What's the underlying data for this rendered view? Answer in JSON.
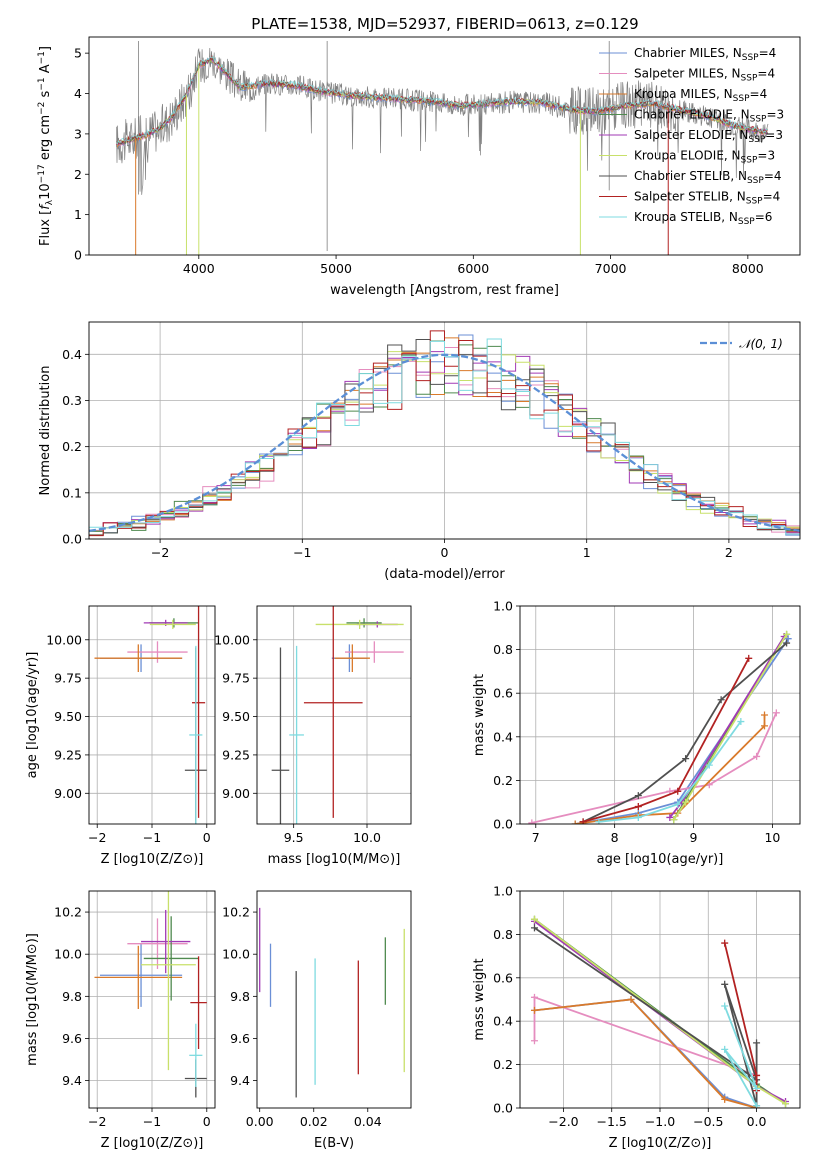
{
  "figure": {
    "title": "PLATE=1538, MJD=52937, FIBERID=0613, z=0.129"
  },
  "colors": {
    "Chabrier MILES": "#6b8fd6",
    "Salpeter MILES": "#e58dbf",
    "Kroupa MILES": "#d97a2b",
    "Chabrier ELODIE": "#4f8a4f",
    "Salpeter ELODIE": "#a23ab5",
    "Kroupa ELODIE": "#c8e06a",
    "Chabrier STELIB": "#505050",
    "Salpeter STELIB": "#b22222",
    "Kroupa STELIB": "#7fdbe0",
    "data": "#808080",
    "normal": "#5b8fd6"
  },
  "chart_data": [
    {
      "id": "spectrum",
      "type": "line",
      "title": "PLATE=1538, MJD=52937, FIBERID=0613, z=0.129",
      "xlabel": "wavelength [Angstrom, rest frame]",
      "ylabel": "Flux [f_λ 10^-17 erg cm^-2 s^-1 A^-1]",
      "xlim": [
        3200,
        8380
      ],
      "ylim": [
        0,
        5.4
      ],
      "xticks": [
        4000,
        5000,
        6000,
        7000,
        8000
      ],
      "yticks": [
        0,
        1,
        2,
        3,
        4,
        5
      ],
      "grid": false,
      "legend_position": "top-right",
      "legend": [
        "Chabrier MILES, N_SSP=4",
        "Salpeter MILES, N_SSP=4",
        "Kroupa MILES, N_SSP=4",
        "Chabrier ELODIE, N_SSP=3",
        "Salpeter ELODIE, N_SSP=3",
        "Kroupa ELODIE, N_SSP=3",
        "Chabrier STELIB, N_SSP=4",
        "Salpeter STELIB, N_SSP=4",
        "Kroupa STELIB, N_SSP=6"
      ],
      "continuum": {
        "x": [
          3400,
          3500,
          3600,
          3700,
          3800,
          3900,
          4000,
          4100,
          4200,
          4300,
          4500,
          4700,
          4900,
          5100,
          5300,
          5500,
          5700,
          5900,
          6100,
          6300,
          6500,
          6700,
          6900,
          7100,
          7300,
          7500,
          7700,
          7900,
          8100
        ],
        "y": [
          2.75,
          2.85,
          2.95,
          3.1,
          3.4,
          3.9,
          4.7,
          4.85,
          4.5,
          4.15,
          4.25,
          4.2,
          4.05,
          3.95,
          3.9,
          3.85,
          3.8,
          3.7,
          3.75,
          3.8,
          3.78,
          3.6,
          3.55,
          3.7,
          3.75,
          3.6,
          3.45,
          3.2,
          3.05
        ]
      }
    },
    {
      "id": "residuals",
      "type": "histogram",
      "xlabel": "(data-model)/error",
      "ylabel": "Normed distribution",
      "xlim": [
        -2.5,
        2.5
      ],
      "ylim": [
        0,
        0.47
      ],
      "xticks": [
        -2,
        -1,
        0,
        1,
        2
      ],
      "yticks": [
        0.0,
        0.1,
        0.2,
        0.3,
        0.4
      ],
      "grid": true,
      "legend_position": "top-right",
      "legend": [
        "𝒩(0, 1)"
      ],
      "bin_width": 0.1,
      "bins_from": -2.5
    },
    {
      "id": "age-vs-Z",
      "type": "errorbar",
      "xlabel": "Z [log10(Z/Z⊙)]",
      "ylabel": "age  [log10(age/yr)]",
      "xlim": [
        -2.15,
        0.15
      ],
      "ylim": [
        8.8,
        10.22
      ],
      "xticks": [
        -2,
        -1,
        0
      ],
      "yticks": [
        9.0,
        9.25,
        9.5,
        9.75,
        10.0
      ],
      "grid": true,
      "points": [
        {
          "model": "Chabrier MILES",
          "x": -1.2,
          "xerr": 0.75,
          "y": 9.88,
          "yerr": 0.09
        },
        {
          "model": "Salpeter MILES",
          "x": -0.9,
          "xerr": 0.55,
          "y": 9.92,
          "yerr": 0.07
        },
        {
          "model": "Kroupa MILES",
          "x": -1.25,
          "xerr": 0.8,
          "y": 9.88,
          "yerr": 0.09
        },
        {
          "model": "Chabrier ELODIE",
          "x": -0.6,
          "xerr": 0.45,
          "y": 10.11,
          "yerr": 0.03
        },
        {
          "model": "Salpeter ELODIE",
          "x": -0.75,
          "xerr": 0.4,
          "y": 10.11,
          "yerr": 0.02
        },
        {
          "model": "Kroupa ELODIE",
          "x": -0.62,
          "xerr": 0.42,
          "y": 10.1,
          "yerr": 0.03
        },
        {
          "model": "Chabrier STELIB",
          "x": -0.2,
          "xerr": 0.2,
          "y": 9.15,
          "yerr": 0.8
        },
        {
          "model": "Salpeter STELIB",
          "x": -0.15,
          "xerr": 0.12,
          "y": 9.59,
          "yerr": 0.75
        },
        {
          "model": "Kroupa STELIB",
          "x": -0.2,
          "xerr": 0.12,
          "y": 9.38,
          "yerr": 0.58
        }
      ]
    },
    {
      "id": "age-vs-mass",
      "type": "errorbar",
      "xlabel": "mass [log10(M/M⊙)]",
      "ylabel": "",
      "xlim": [
        9.25,
        10.3
      ],
      "ylim": [
        8.8,
        10.22
      ],
      "xticks": [
        9.5,
        10.0
      ],
      "yticks": [
        9.0,
        9.25,
        9.5,
        9.75,
        10.0
      ],
      "grid": true,
      "points": [
        {
          "model": "Chabrier MILES",
          "x": 9.88,
          "xerr": 0.12,
          "y": 9.88,
          "yerr": 0.09
        },
        {
          "model": "Salpeter MILES",
          "x": 10.05,
          "xerr": 0.2,
          "y": 9.92,
          "yerr": 0.07
        },
        {
          "model": "Kroupa MILES",
          "x": 9.9,
          "xerr": 0.12,
          "y": 9.88,
          "yerr": 0.09
        },
        {
          "model": "Chabrier ELODIE",
          "x": 9.98,
          "xerr": 0.12,
          "y": 10.11,
          "yerr": 0.03
        },
        {
          "model": "Salpeter ELODIE",
          "x": 10.07,
          "xerr": 0.14,
          "y": 10.1,
          "yerr": 0.02
        },
        {
          "model": "Kroupa ELODIE",
          "x": 9.95,
          "xerr": 0.3,
          "y": 10.1,
          "yerr": 0.03
        },
        {
          "model": "Chabrier STELIB",
          "x": 9.41,
          "xerr": 0.06,
          "y": 9.15,
          "yerr": 0.8
        },
        {
          "model": "Salpeter STELIB",
          "x": 9.77,
          "xerr": 0.2,
          "y": 9.59,
          "yerr": 0.75
        },
        {
          "model": "Kroupa STELIB",
          "x": 9.52,
          "xerr": 0.05,
          "y": 9.38,
          "yerr": 0.58
        }
      ]
    },
    {
      "id": "weight-vs-age",
      "type": "line",
      "xlabel": "age  [log10(age/yr)]",
      "ylabel": "mass weight",
      "xlim": [
        6.8,
        10.35
      ],
      "ylim": [
        0,
        1
      ],
      "xticks": [
        7,
        8,
        9,
        10
      ],
      "yticks": [
        0.0,
        0.2,
        0.4,
        0.6,
        0.8,
        1.0
      ],
      "grid": true,
      "series": [
        {
          "model": "Chabrier MILES",
          "x": [
            7.5,
            8.3,
            8.8,
            10.2
          ],
          "y": [
            0.0,
            0.05,
            0.1,
            0.85
          ]
        },
        {
          "model": "Salpeter MILES",
          "x": [
            6.95,
            8.7,
            9.2,
            9.8,
            10.05
          ],
          "y": [
            0.005,
            0.15,
            0.18,
            0.31,
            0.51
          ]
        },
        {
          "model": "Kroupa MILES",
          "x": [
            7.5,
            8.3,
            8.8,
            9.9,
            9.9
          ],
          "y": [
            0.0,
            0.04,
            0.05,
            0.45,
            0.5
          ]
        },
        {
          "model": "Chabrier ELODIE",
          "x": [
            8.75,
            8.9,
            10.18
          ],
          "y": [
            0.02,
            0.11,
            0.87
          ]
        },
        {
          "model": "Salpeter ELODIE",
          "x": [
            8.7,
            8.85,
            10.15
          ],
          "y": [
            0.03,
            0.1,
            0.86
          ]
        },
        {
          "model": "Kroupa ELODIE",
          "x": [
            8.75,
            8.9,
            10.18
          ],
          "y": [
            0.02,
            0.1,
            0.87
          ]
        },
        {
          "model": "Chabrier STELIB",
          "x": [
            7.6,
            8.3,
            8.9,
            9.35,
            10.18
          ],
          "y": [
            0.01,
            0.13,
            0.3,
            0.57,
            0.83
          ]
        },
        {
          "model": "Salpeter STELIB",
          "x": [
            7.6,
            8.3,
            8.8,
            9.7
          ],
          "y": [
            0.01,
            0.08,
            0.15,
            0.76
          ]
        },
        {
          "model": "Kroupa STELIB",
          "x": [
            7.8,
            8.3,
            8.8,
            9.2,
            9.6
          ],
          "y": [
            0.01,
            0.03,
            0.09,
            0.27,
            0.47
          ]
        }
      ]
    },
    {
      "id": "mass-vs-Z",
      "type": "errorbar",
      "xlabel": "Z [log10(Z/Z⊙)]",
      "ylabel": "mass [log10(M/M⊙)]",
      "xlim": [
        -2.15,
        0.15
      ],
      "ylim": [
        9.27,
        10.3
      ],
      "xticks": [
        -2,
        -1,
        0
      ],
      "yticks": [
        9.4,
        9.6,
        9.8,
        10.0,
        10.2
      ],
      "grid": true,
      "points": [
        {
          "model": "Chabrier MILES",
          "x": -1.2,
          "xerr": 0.75,
          "y": 9.9,
          "yerr": 0.15
        },
        {
          "model": "Salpeter MILES",
          "x": -0.9,
          "xerr": 0.55,
          "y": 10.05,
          "yerr": 0.12
        },
        {
          "model": "Kroupa MILES",
          "x": -1.25,
          "xerr": 0.8,
          "y": 9.89,
          "yerr": 0.15
        },
        {
          "model": "Chabrier ELODIE",
          "x": -0.65,
          "xerr": 0.5,
          "y": 9.98,
          "yerr": 0.2
        },
        {
          "model": "Salpeter ELODIE",
          "x": -0.75,
          "xerr": 0.45,
          "y": 10.06,
          "yerr": 0.15
        },
        {
          "model": "Kroupa ELODIE",
          "x": -0.7,
          "xerr": 0.5,
          "y": 9.95,
          "yerr": 0.5
        },
        {
          "model": "Chabrier STELIB",
          "x": -0.2,
          "xerr": 0.2,
          "y": 9.41,
          "yerr": 0.09
        },
        {
          "model": "Salpeter STELIB",
          "x": -0.15,
          "xerr": 0.15,
          "y": 9.77,
          "yerr": 0.22
        },
        {
          "model": "Kroupa STELIB",
          "x": -0.2,
          "xerr": 0.12,
          "y": 9.52,
          "yerr": 0.15
        }
      ]
    },
    {
      "id": "mass-vs-ebv",
      "type": "errorbar",
      "xlabel": "E(B-V)",
      "ylabel": "",
      "xlim": [
        -0.001,
        0.056
      ],
      "ylim": [
        9.27,
        10.3
      ],
      "xticks": [
        0.0,
        0.02,
        0.04
      ],
      "yticks": [
        9.4,
        9.6,
        9.8,
        10.0,
        10.2
      ],
      "grid": false,
      "points": [
        {
          "model": "Chabrier MILES",
          "x": 0.004,
          "y": 9.9,
          "yerr": 0.15
        },
        {
          "model": "Salpeter ELODIE",
          "x": 0.0,
          "y": 10.02,
          "yerr": 0.2
        },
        {
          "model": "Chabrier STELIB",
          "x": 0.0135,
          "y": 9.62,
          "yerr": 0.3
        },
        {
          "model": "Kroupa STELIB",
          "x": 0.0205,
          "y": 9.68,
          "yerr": 0.3
        },
        {
          "model": "Salpeter STELIB",
          "x": 0.0365,
          "y": 9.7,
          "yerr": 0.27
        },
        {
          "model": "Chabrier ELODIE",
          "x": 0.0465,
          "y": 9.92,
          "yerr": 0.16
        },
        {
          "model": "Kroupa ELODIE",
          "x": 0.0535,
          "y": 9.78,
          "yerr": 0.34
        }
      ]
    },
    {
      "id": "weight-vs-Z",
      "type": "line",
      "xlabel": "Z [log10(Z/Z⊙)]",
      "ylabel": "mass weight",
      "xlim": [
        -2.45,
        0.45
      ],
      "ylim": [
        0,
        1
      ],
      "xticks": [
        -2.0,
        -1.5,
        -1.0,
        -0.5,
        0.0
      ],
      "yticks": [
        0.0,
        0.2,
        0.4,
        0.6,
        0.8,
        1.0
      ],
      "grid": true,
      "series": [
        {
          "model": "Chabrier MILES",
          "x": [
            -2.3,
            -1.3,
            -0.33,
            0.0
          ],
          "y": [
            0.45,
            0.5,
            0.05,
            0.0
          ]
        },
        {
          "model": "Salpeter MILES",
          "x": [
            -2.3,
            -2.3,
            0.0
          ],
          "y": [
            0.31,
            0.51,
            0.15
          ]
        },
        {
          "model": "Kroupa MILES",
          "x": [
            -2.3,
            -1.3,
            -0.33,
            0.0
          ],
          "y": [
            0.45,
            0.5,
            0.04,
            0.0
          ]
        },
        {
          "model": "Chabrier ELODIE",
          "x": [
            -2.3,
            0.0,
            0.3
          ],
          "y": [
            0.87,
            0.11,
            0.02
          ]
        },
        {
          "model": "Salpeter ELODIE",
          "x": [
            -2.3,
            0.0,
            0.3
          ],
          "y": [
            0.86,
            0.1,
            0.03
          ]
        },
        {
          "model": "Kroupa ELODIE",
          "x": [
            -2.3,
            0.0,
            0.3
          ],
          "y": [
            0.87,
            0.1,
            0.02
          ]
        },
        {
          "model": "Chabrier STELIB",
          "x": [
            -2.3,
            0.0,
            -0.33,
            0.0,
            0.0
          ],
          "y": [
            0.83,
            0.13,
            0.57,
            0.01,
            0.3
          ]
        },
        {
          "model": "Salpeter STELIB",
          "x": [
            -0.33,
            0.0,
            0.0
          ],
          "y": [
            0.76,
            0.15,
            0.08
          ]
        },
        {
          "model": "Kroupa STELIB",
          "x": [
            -0.33,
            0.0,
            -0.33,
            0.0
          ],
          "y": [
            0.47,
            0.09,
            0.27,
            0.01
          ]
        }
      ]
    }
  ]
}
